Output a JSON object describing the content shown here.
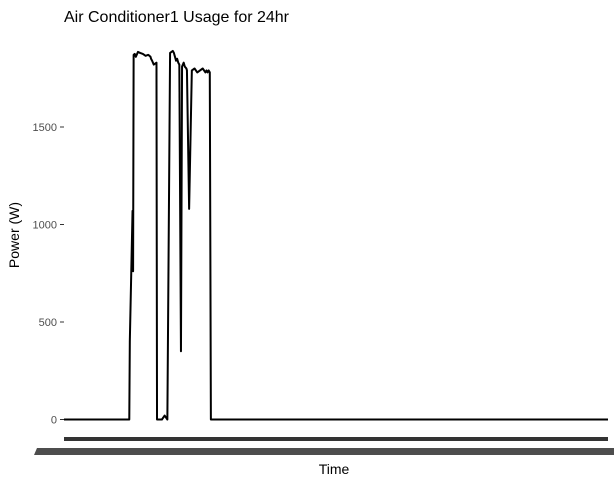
{
  "chart_data": {
    "type": "line",
    "title": "Air Conditioner1 Usage for 24hr",
    "xlabel": "Time",
    "ylabel": "Power (W)",
    "ylim": [
      -90,
      1970
    ],
    "yticks": [
      0,
      500,
      1000,
      1500
    ],
    "ytick_labels": [
      "0",
      "500",
      "1000",
      "1500"
    ],
    "x_tick_labels_legible": false,
    "grid": false,
    "legend": "none",
    "line_color": "#000000",
    "series": [
      {
        "x": [
          0,
          12,
          12.1,
          12.6,
          12.7,
          12.8,
          13.0,
          13.2,
          13.6,
          14.0,
          14.5,
          15.0,
          15.5,
          15.9,
          16.0,
          16.2,
          16.5,
          17.0,
          17.1,
          17.2,
          17.5,
          18.0,
          18.5,
          19.0,
          19.5,
          20.0,
          20.2,
          20.3,
          20.4,
          20.6,
          20.8,
          21.0,
          21.2,
          21.5,
          21.7,
          22.0,
          22.2,
          22.5,
          22.6,
          23.0,
          23.5,
          24.0,
          24.5,
          25.0,
          25.5,
          26.0,
          26.2,
          26.4,
          26.6,
          26.8,
          27.0,
          27.1,
          100
        ],
        "y": [
          0,
          0,
          400,
          1070,
          760,
          1870,
          1875,
          1860,
          1885,
          1880,
          1875,
          1865,
          1870,
          1860,
          1850,
          1840,
          1820,
          1830,
          0,
          0,
          0,
          0,
          20,
          0,
          1880,
          1890,
          1880,
          1870,
          1860,
          1840,
          1850,
          1830,
          1820,
          350,
          1810,
          1830,
          1810,
          1800,
          1790,
          1080,
          1790,
          1800,
          1780,
          1790,
          1800,
          1780,
          1790,
          1780,
          1790,
          1780,
          0,
          0,
          0
        ]
      }
    ]
  }
}
